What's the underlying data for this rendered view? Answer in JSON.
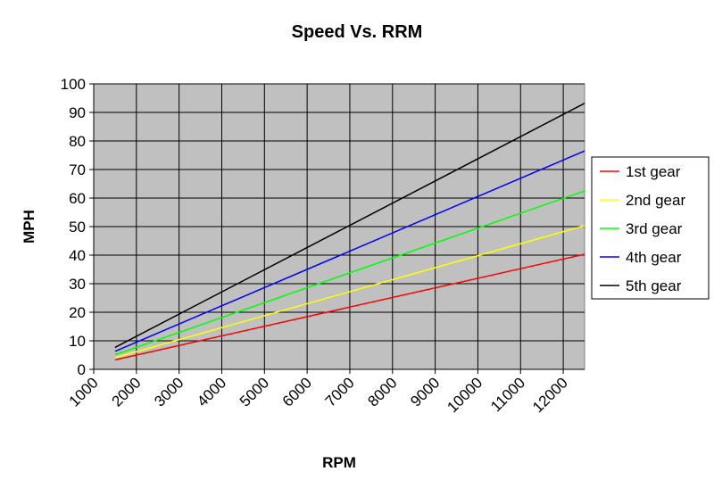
{
  "chart_data": {
    "type": "line",
    "title": "Speed Vs. RRM",
    "xlabel": "RPM",
    "ylabel": "MPH",
    "xlim": [
      1000,
      12500
    ],
    "ylim": [
      0,
      100
    ],
    "xticks": [
      "1000",
      "2000",
      "3000",
      "4000",
      "5000",
      "6000",
      "7000",
      "8000",
      "9000",
      "10000",
      "11000",
      "12000"
    ],
    "yticks": [
      "0",
      "10",
      "20",
      "30",
      "40",
      "50",
      "60",
      "70",
      "80",
      "90",
      "100"
    ],
    "grid": true,
    "legend_position": "right",
    "plot_background": "#c0c0c0",
    "series": [
      {
        "name": "1st gear",
        "color": "#ff0000",
        "x": [
          1500,
          12500
        ],
        "y": [
          3.3,
          40.3
        ]
      },
      {
        "name": "2nd gear",
        "color": "#ffff00",
        "x": [
          1500,
          12500
        ],
        "y": [
          4.1,
          50.3
        ]
      },
      {
        "name": "3rd gear",
        "color": "#00ff00",
        "x": [
          1500,
          12500
        ],
        "y": [
          5.1,
          62.5
        ]
      },
      {
        "name": "4th gear",
        "color": "#0000ff",
        "x": [
          1500,
          12500
        ],
        "y": [
          6.3,
          76.5
        ]
      },
      {
        "name": "5th gear",
        "color": "#000000",
        "x": [
          1500,
          12500
        ],
        "y": [
          7.7,
          93.2
        ]
      }
    ]
  }
}
